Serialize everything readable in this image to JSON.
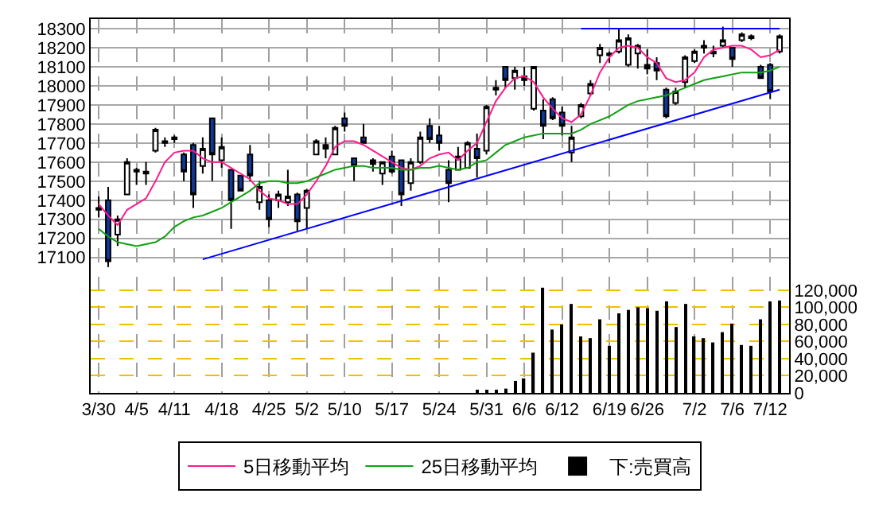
{
  "chart_data": {
    "type": "candlestick",
    "categories": [
      "3/30",
      null,
      null,
      null,
      "4/5",
      null,
      null,
      null,
      "4/11",
      null,
      null,
      null,
      null,
      "4/18",
      null,
      null,
      null,
      null,
      "4/25",
      null,
      null,
      null,
      "5/2",
      null,
      null,
      null,
      "5/10",
      null,
      null,
      null,
      null,
      "5/17",
      null,
      null,
      null,
      null,
      "5/24",
      null,
      null,
      null,
      null,
      "5/31",
      null,
      null,
      null,
      "6/6",
      null,
      null,
      null,
      "6/12",
      null,
      null,
      null,
      null,
      "6/19",
      null,
      null,
      null,
      "6/26",
      null,
      null,
      null,
      null,
      "7/2",
      null,
      null,
      null,
      "7/6",
      null,
      null,
      null,
      "7/12",
      null
    ],
    "ohlc": [
      [
        17350,
        17420,
        17310,
        17360
      ],
      [
        17400,
        17470,
        17050,
        17080
      ],
      [
        17220,
        17320,
        17160,
        17300
      ],
      [
        17430,
        17620,
        17430,
        17600
      ],
      [
        17550,
        17570,
        17480,
        17560
      ],
      [
        17550,
        17600,
        17480,
        17540
      ],
      [
        17660,
        17780,
        17650,
        17770
      ],
      [
        17700,
        17730,
        17680,
        17710
      ],
      [
        17720,
        17740,
        17700,
        17730
      ],
      [
        17640,
        17650,
        17500,
        17550
      ],
      [
        17690,
        17700,
        17360,
        17430
      ],
      [
        17580,
        17730,
        17540,
        17670
      ],
      [
        17830,
        17830,
        17500,
        17640
      ],
      [
        17610,
        17730,
        17570,
        17680
      ],
      [
        17560,
        17560,
        17250,
        17400
      ],
      [
        17530,
        17530,
        17450,
        17450
      ],
      [
        17640,
        17690,
        17500,
        17530
      ],
      [
        17390,
        17500,
        17350,
        17470
      ],
      [
        17400,
        17430,
        17260,
        17300
      ],
      [
        17400,
        17450,
        17360,
        17430
      ],
      [
        17390,
        17560,
        17370,
        17420
      ],
      [
        17430,
        17440,
        17240,
        17290
      ],
      [
        17360,
        17460,
        17250,
        17450
      ],
      [
        17640,
        17720,
        17640,
        17710
      ],
      [
        17670,
        17730,
        17620,
        17690
      ],
      [
        17640,
        17790,
        17640,
        17780
      ],
      [
        17830,
        17860,
        17760,
        17790
      ],
      [
        17620,
        17620,
        17500,
        17580
      ],
      [
        17730,
        17800,
        17700,
        17700
      ],
      [
        17610,
        17620,
        17550,
        17590
      ],
      [
        17540,
        17600,
        17480,
        17600
      ],
      [
        17630,
        17660,
        17540,
        17550
      ],
      [
        17610,
        17610,
        17370,
        17430
      ],
      [
        17490,
        17620,
        17450,
        17600
      ],
      [
        17600,
        17760,
        17590,
        17730
      ],
      [
        17790,
        17830,
        17700,
        17720
      ],
      [
        17740,
        17790,
        17660,
        17700
      ],
      [
        17560,
        17610,
        17390,
        17490
      ],
      [
        17560,
        17680,
        17560,
        17630
      ],
      [
        17570,
        17710,
        17570,
        17700
      ],
      [
        17670,
        17750,
        17520,
        17620
      ],
      [
        17660,
        17900,
        17640,
        17890
      ],
      [
        17980,
        18030,
        17950,
        17990
      ],
      [
        18100,
        18100,
        17990,
        18030
      ],
      [
        18040,
        18100,
        17980,
        18080
      ],
      [
        18050,
        18100,
        18000,
        18030
      ],
      [
        17880,
        18100,
        17870,
        18100
      ],
      [
        17870,
        17930,
        17720,
        17790
      ],
      [
        17930,
        17940,
        17820,
        17830
      ],
      [
        17860,
        17890,
        17740,
        17790
      ],
      [
        17650,
        17790,
        17600,
        17730
      ],
      [
        17840,
        17910,
        17830,
        17900
      ],
      [
        17960,
        18030,
        17950,
        18010
      ],
      [
        18160,
        18220,
        18120,
        18200
      ],
      [
        18170,
        18180,
        18120,
        18160
      ],
      [
        18180,
        18300,
        18170,
        18240
      ],
      [
        18110,
        18270,
        18100,
        18250
      ],
      [
        18170,
        18220,
        18090,
        18210
      ],
      [
        18110,
        18190,
        18060,
        18090
      ],
      [
        18120,
        18150,
        18030,
        18080
      ],
      [
        17980,
        17990,
        17830,
        17840
      ],
      [
        17910,
        17990,
        17900,
        17970
      ],
      [
        18020,
        18160,
        17990,
        18150
      ],
      [
        18130,
        18190,
        18120,
        18180
      ],
      [
        18200,
        18240,
        18170,
        18210
      ],
      [
        18180,
        18210,
        18150,
        18170
      ],
      [
        18210,
        18310,
        18200,
        18240
      ],
      [
        18200,
        18200,
        18100,
        18140
      ],
      [
        18240,
        18280,
        18230,
        18270
      ],
      [
        18250,
        18270,
        18240,
        18260
      ],
      [
        18100,
        18110,
        18040,
        18040
      ],
      [
        18110,
        18120,
        17930,
        17970
      ],
      [
        18180,
        18270,
        18170,
        18260
      ]
    ],
    "colors": [
      "#000000",
      "#10389a",
      "#ffffff",
      "#ffffff",
      "#000000",
      "#000000",
      "#ffffff",
      "#000000",
      "#000000",
      "#10389a",
      "#10389a",
      "#ffffff",
      "#10389a",
      "#ffffff",
      "#10389a",
      "#10389a",
      "#10389a",
      "#ffffff",
      "#10389a",
      "#ffffff",
      "#ffffff",
      "#10389a",
      "#ffffff",
      "#ffffff",
      "#000000",
      "#ffffff",
      "#10389a",
      "#10389a",
      "#10389a",
      "#000000",
      "#ffffff",
      "#10389a",
      "#10389a",
      "#ffffff",
      "#ffffff",
      "#10389a",
      "#10389a",
      "#10389a",
      "#ffffff",
      "#ffffff",
      "#10389a",
      "#ffffff",
      "#000000",
      "#10389a",
      "#ffffff",
      "#000000",
      "#ffffff",
      "#10389a",
      "#10389a",
      "#10389a",
      "#ffffff",
      "#ffffff",
      "#ffffff",
      "#ffffff",
      "#000000",
      "#ffffff",
      "#ffffff",
      "#ffffff",
      "#000000",
      "#10389a",
      "#10389a",
      "#ffffff",
      "#ffffff",
      "#ffffff",
      "#000000",
      "#000000",
      "#ffffff",
      "#10389a",
      "#ffffff",
      "#000000",
      "#10389a",
      "#10389a",
      "#ffffff"
    ],
    "series": [
      {
        "name": "5日移動平均",
        "type": "line",
        "color": "#ff1a8c",
        "values": [
          17380,
          17320,
          17270,
          17350,
          17380,
          17410,
          17500,
          17600,
          17650,
          17660,
          17660,
          17620,
          17600,
          17600,
          17570,
          17540,
          17510,
          17450,
          17410,
          17400,
          17380,
          17380,
          17430,
          17500,
          17580,
          17680,
          17710,
          17710,
          17690,
          17660,
          17630,
          17600,
          17570,
          17560,
          17580,
          17620,
          17640,
          17650,
          17610,
          17660,
          17700,
          17810,
          17920,
          17990,
          18040,
          18050,
          18020,
          17940,
          17880,
          17830,
          17810,
          17850,
          17950,
          18070,
          18150,
          18200,
          18210,
          18200,
          18150,
          18120,
          18040,
          18020,
          18030,
          18070,
          18150,
          18190,
          18200,
          18210,
          18210,
          18190,
          18150,
          18160,
          18190
        ]
      },
      {
        "name": "25日移動平均",
        "type": "line",
        "color": "#10a010",
        "values": [
          17250,
          17210,
          17180,
          17170,
          17160,
          17170,
          17180,
          17210,
          17260,
          17290,
          17310,
          17320,
          17340,
          17360,
          17390,
          17420,
          17450,
          17490,
          17500,
          17500,
          17490,
          17490,
          17500,
          17520,
          17540,
          17560,
          17570,
          17580,
          17580,
          17570,
          17570,
          17570,
          17560,
          17560,
          17570,
          17570,
          17580,
          17570,
          17560,
          17570,
          17600,
          17610,
          17650,
          17690,
          17710,
          17730,
          17740,
          17750,
          17750,
          17750,
          17750,
          17770,
          17800,
          17820,
          17840,
          17870,
          17900,
          17920,
          17930,
          17940,
          17950,
          17970,
          17990,
          18010,
          18030,
          18040,
          18050,
          18060,
          18070,
          18070,
          18070,
          18080,
          18100
        ]
      },
      {
        "type": "line",
        "color": "#0000ff",
        "values": [
          null,
          null,
          null,
          null,
          null,
          null,
          null,
          null,
          null,
          null,
          null,
          17090,
          null,
          null,
          null,
          null,
          null,
          null,
          null,
          null,
          null,
          null,
          null,
          null,
          null,
          null,
          null,
          null,
          null,
          null,
          null,
          null,
          null,
          null,
          null,
          null,
          null,
          null,
          null,
          null,
          null,
          null,
          null,
          null,
          null,
          null,
          null,
          null,
          null,
          null,
          null,
          null,
          null,
          null,
          null,
          null,
          null,
          null,
          null,
          null,
          null,
          null,
          null,
          null,
          null,
          null,
          null,
          null,
          null,
          null,
          null,
          null,
          17980
        ]
      },
      {
        "type": "line",
        "color": "#0000ff",
        "values": [
          null,
          null,
          null,
          null,
          null,
          null,
          null,
          null,
          null,
          null,
          null,
          null,
          null,
          null,
          null,
          null,
          null,
          null,
          null,
          null,
          null,
          null,
          null,
          null,
          null,
          null,
          null,
          null,
          null,
          null,
          null,
          null,
          null,
          null,
          null,
          null,
          null,
          null,
          null,
          null,
          null,
          null,
          null,
          null,
          null,
          null,
          null,
          null,
          null,
          null,
          null,
          18300,
          null,
          null,
          null,
          null,
          null,
          null,
          null,
          null,
          null,
          null,
          null,
          null,
          null,
          null,
          null,
          null,
          null,
          null,
          null,
          null,
          18300
        ]
      },
      {
        "name": "下:売買高",
        "type": "bar",
        "color": "#000000",
        "axis": "y2",
        "values": [
          null,
          null,
          null,
          null,
          null,
          null,
          null,
          null,
          null,
          null,
          null,
          null,
          null,
          null,
          null,
          null,
          null,
          null,
          null,
          null,
          null,
          null,
          null,
          null,
          null,
          null,
          null,
          null,
          null,
          null,
          null,
          null,
          null,
          null,
          null,
          null,
          null,
          null,
          null,
          null,
          2000,
          2000,
          3000,
          5000,
          14000,
          17000,
          47000,
          123000,
          74000,
          80000,
          104000,
          66000,
          64000,
          86000,
          55000,
          93000,
          97000,
          100000,
          99000,
          96000,
          107000,
          77000,
          104000,
          66000,
          64000,
          59000,
          71000,
          81000,
          56000,
          55000,
          86000,
          107000,
          108000
        ]
      }
    ],
    "ylim": [
      16390,
      18350
    ],
    "yticks": [
      17100,
      17200,
      17300,
      17400,
      17500,
      17600,
      17700,
      17800,
      17900,
      18000,
      18100,
      18200,
      18300
    ],
    "y2lim": [
      0,
      437000
    ],
    "y2ticks": [
      0,
      {
        "value": 20000,
        "label": "20,000"
      },
      {
        "value": 40000,
        "label": "40,000"
      },
      {
        "value": 60000,
        "label": "60,000"
      },
      {
        "value": 80000,
        "label": "80,000"
      },
      {
        "value": 100000,
        "label": "100,000"
      },
      {
        "value": 120000,
        "label": "120,000"
      }
    ],
    "grid": true,
    "legend": "bottom"
  }
}
